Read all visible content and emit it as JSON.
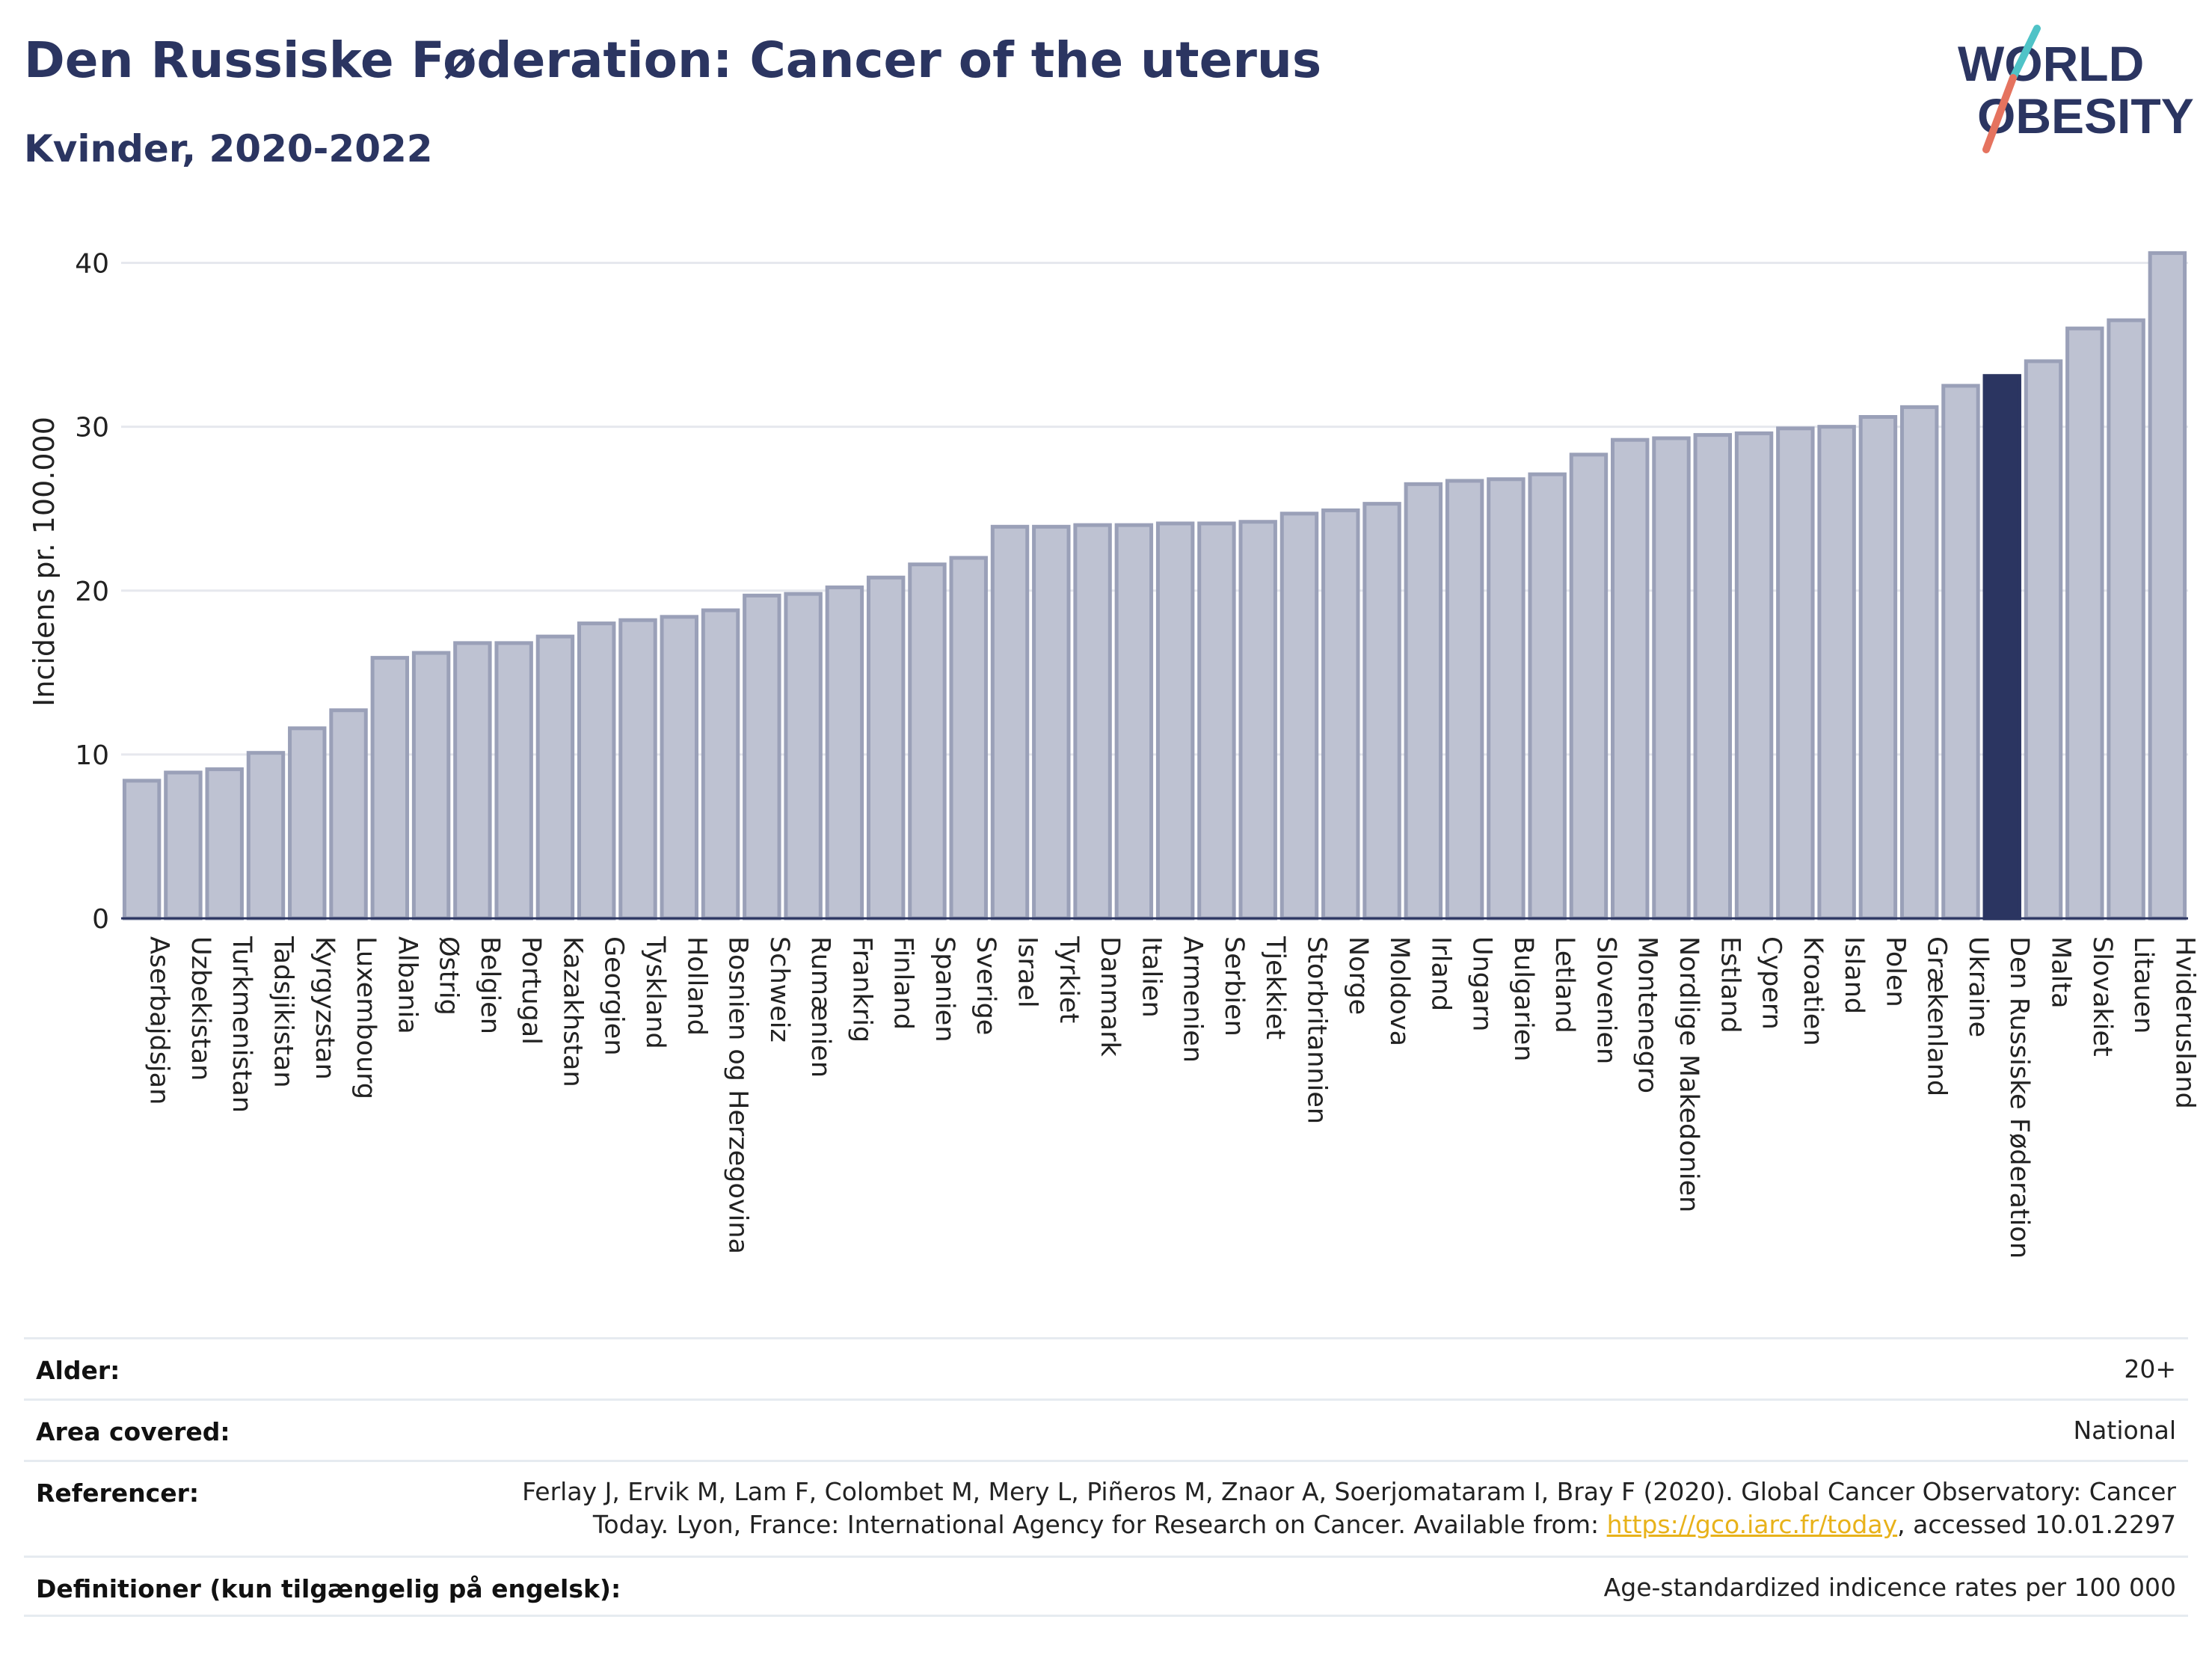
{
  "header": {
    "title": "Den Russiske Føderation: Cancer of the uterus",
    "subtitle": "Kvinder, 2020-2022"
  },
  "logo": {
    "line1": "WORLD",
    "line2": "OBESITY"
  },
  "colors": {
    "bar": "#bec2d2",
    "bar_border": "#9aa0b8",
    "highlight": "#2b3561",
    "grid": "#e6e8ee",
    "text": "#2b3561",
    "logo_teal": "#4fc3c7",
    "logo_coral": "#e5735f",
    "link": "#e8b21a"
  },
  "chart_data": {
    "type": "bar",
    "ylabel": "Incidens pr. 100.000",
    "ylim": [
      0,
      40.8
    ],
    "yticks": [
      0,
      10,
      20,
      30,
      40
    ],
    "grid": true,
    "highlight": "Den Russiske Føderation",
    "categories": [
      "Aserbajdsjan",
      "Uzbekistan",
      "Turkmenistan",
      "Tadsjikistan",
      "Kyrgyzstan",
      "Luxembourg",
      "Albania",
      "Østrig",
      "Belgien",
      "Portugal",
      "Kazakhstan",
      "Georgien",
      "Tyskland",
      "Holland",
      "Bosnien og Herzegovina",
      "Schweiz",
      "Rumænien",
      "Frankrig",
      "Finland",
      "Spanien",
      "Sverige",
      "Israel",
      "Tyrkiet",
      "Danmark",
      "Italien",
      "Armenien",
      "Serbien",
      "Tjekkiet",
      "Storbritannien",
      "Norge",
      "Moldova",
      "Irland",
      "Ungarn",
      "Bulgarien",
      "Letland",
      "Slovenien",
      "Montenegro",
      "Nordlige Makedonien",
      "Estland",
      "Cypern",
      "Kroatien",
      "Island",
      "Polen",
      "Grækenland",
      "Ukraine",
      "Den Russiske Føderation",
      "Malta",
      "Slovakiet",
      "Litauen",
      "Hviderusland"
    ],
    "values": [
      8.4,
      8.9,
      9.1,
      10.1,
      11.6,
      12.7,
      15.9,
      16.2,
      16.8,
      16.8,
      17.2,
      18.0,
      18.2,
      18.4,
      18.8,
      19.7,
      19.8,
      20.2,
      20.8,
      21.6,
      22.0,
      23.9,
      23.9,
      24.0,
      24.0,
      24.1,
      24.1,
      24.2,
      24.7,
      24.9,
      25.3,
      26.5,
      26.7,
      26.8,
      27.1,
      28.3,
      29.2,
      29.3,
      29.5,
      29.6,
      29.9,
      30.0,
      30.6,
      31.2,
      32.5,
      33.1,
      34.0,
      36.0,
      36.5,
      40.6
    ]
  },
  "meta": [
    {
      "label": "Alder:",
      "value": "20+"
    },
    {
      "label": "Area covered:",
      "value": "National"
    },
    {
      "label": "Referencer:",
      "value_line1": "Ferlay J, Ervik M, Lam F, Colombet M, Mery L, Piñeros M, Znaor A, Soerjomataram I, Bray F (2020). Global Cancer Observatory: Cancer",
      "value_line2_pre": "Today. Lyon, France: International Agency for Research on Cancer. Available from: ",
      "link": "https://gco.iarc.fr/today",
      "value_line2_post": ", accessed 10.01.2297"
    },
    {
      "label": "Definitioner (kun tilgængelig på engelsk):",
      "value": "Age-standardized indicence rates per 100 000"
    }
  ]
}
